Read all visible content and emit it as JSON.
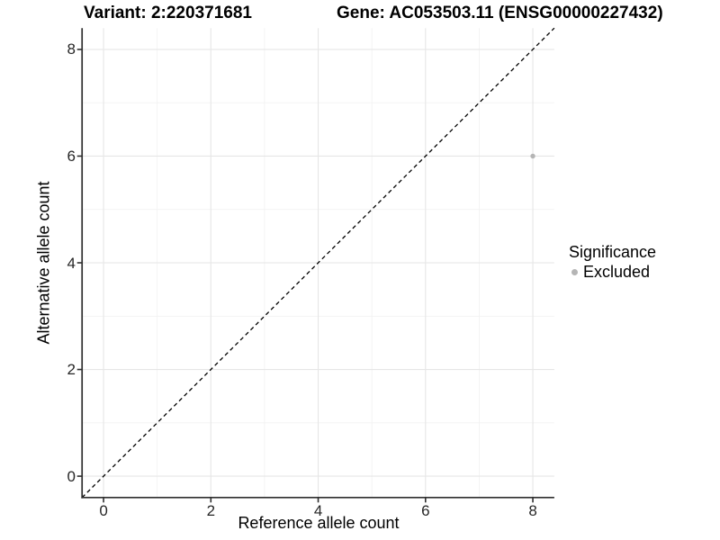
{
  "header": {
    "variant_title": "Variant: 2:220371681",
    "gene_title": "Gene: AC053503.11 (ENSG00000227432)"
  },
  "axes": {
    "x_label": "Reference allele count",
    "y_label": "Alternative allele count"
  },
  "legend": {
    "title": "Significance",
    "items": [
      {
        "label": "Excluded",
        "color": "#b5b5b5"
      }
    ]
  },
  "chart_data": {
    "type": "scatter",
    "title_left": "Variant: 2:220371681",
    "title_right": "Gene: AC053503.11 (ENSG00000227432)",
    "xlabel": "Reference allele count",
    "ylabel": "Alternative allele count",
    "xlim": [
      -0.4,
      8.4
    ],
    "ylim": [
      -0.4,
      8.4
    ],
    "x_major_ticks": [
      0,
      2,
      4,
      6,
      8
    ],
    "y_major_ticks": [
      0,
      2,
      4,
      6,
      8
    ],
    "x_minor_gridlines": [
      1,
      3,
      5,
      7
    ],
    "y_minor_gridlines": [
      1,
      3,
      5,
      7
    ],
    "grid": "major and minor gridlines on white background",
    "series": [
      {
        "name": "Excluded",
        "color": "#b5b5b5",
        "points": [
          {
            "x": 8,
            "y": 6
          }
        ]
      }
    ],
    "reference_line": {
      "kind": "identity y=x",
      "style": "dashed",
      "color": "#000000"
    },
    "legend_title": "Significance",
    "legend_position": "right",
    "colors": {
      "grid_major": "#e6e6e6",
      "grid_minor": "#f2f2f2",
      "axis_line": "#2f2f2f",
      "tick_text": "#262626",
      "point": "#b5b5b5"
    }
  }
}
